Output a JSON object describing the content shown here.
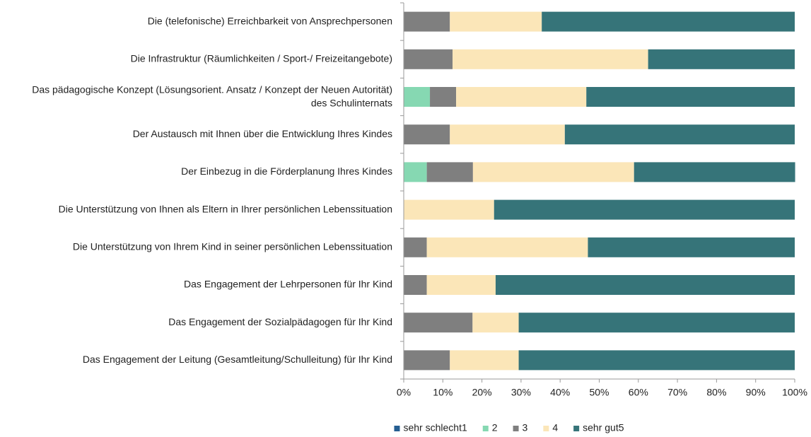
{
  "chart_data": {
    "type": "stacked_barh",
    "categories": [
      "Die (telefonische) Erreichbarkeit von Ansprechpersonen",
      "Die Infrastruktur (Räumlichkeiten / Sport-/ Freizeitangebote)",
      "Das pädagogische Konzept (Lösungsorient. Ansatz / Konzept der Neuen Autorität) des Schulinternats",
      "Der Austausch mit Ihnen über die Entwicklung Ihres Kindes",
      "Der Einbezug in die Förderplanung Ihres Kindes",
      "Die Unterstützung von Ihnen als Eltern in Ihrer persönlichen Lebenssituation",
      "Die Unterstützung von Ihrem Kind in seiner persönlichen Lebenssituation",
      "Das Engagement der Lehrpersonen für Ihr Kind",
      "Das Engagement der Sozialpädagogen für Ihr Kind",
      "Das Engagement der Leitung (Gesamtleitung/Schulleitung) für Ihr Kind"
    ],
    "series": [
      {
        "name": "sehr schlecht1",
        "color": "#255e91",
        "values": [
          0,
          0,
          0,
          0,
          0,
          0,
          0,
          0,
          0,
          0
        ]
      },
      {
        "name": "2",
        "color": "#86d8b2",
        "values": [
          0,
          0,
          6.7,
          0,
          5.9,
          0,
          0,
          0,
          0,
          0
        ]
      },
      {
        "name": "3",
        "color": "#7f7f7f",
        "values": [
          11.8,
          12.5,
          6.7,
          11.8,
          11.8,
          0,
          5.9,
          5.9,
          17.6,
          11.8
        ]
      },
      {
        "name": "4",
        "color": "#fbe6b8",
        "values": [
          23.5,
          50,
          33.3,
          29.4,
          41.2,
          23.1,
          41.2,
          17.6,
          11.8,
          17.6
        ]
      },
      {
        "name": "sehr gut5",
        "color": "#367479",
        "values": [
          64.7,
          37.5,
          53.3,
          58.8,
          41.2,
          76.9,
          52.9,
          76.5,
          70.6,
          70.6
        ]
      }
    ],
    "xlim": [
      0,
      100
    ],
    "xticks": [
      {
        "value": 0,
        "label": "0%"
      },
      {
        "value": 10,
        "label": "10%"
      },
      {
        "value": 20,
        "label": "20%"
      },
      {
        "value": 30,
        "label": "30%"
      },
      {
        "value": 40,
        "label": "40%"
      },
      {
        "value": 50,
        "label": "50%"
      },
      {
        "value": 60,
        "label": "60%"
      },
      {
        "value": 70,
        "label": "70%"
      },
      {
        "value": 80,
        "label": "80%"
      },
      {
        "value": 90,
        "label": "90%"
      },
      {
        "value": 100,
        "label": "100%"
      }
    ],
    "grid": false,
    "legend": "bottom"
  }
}
